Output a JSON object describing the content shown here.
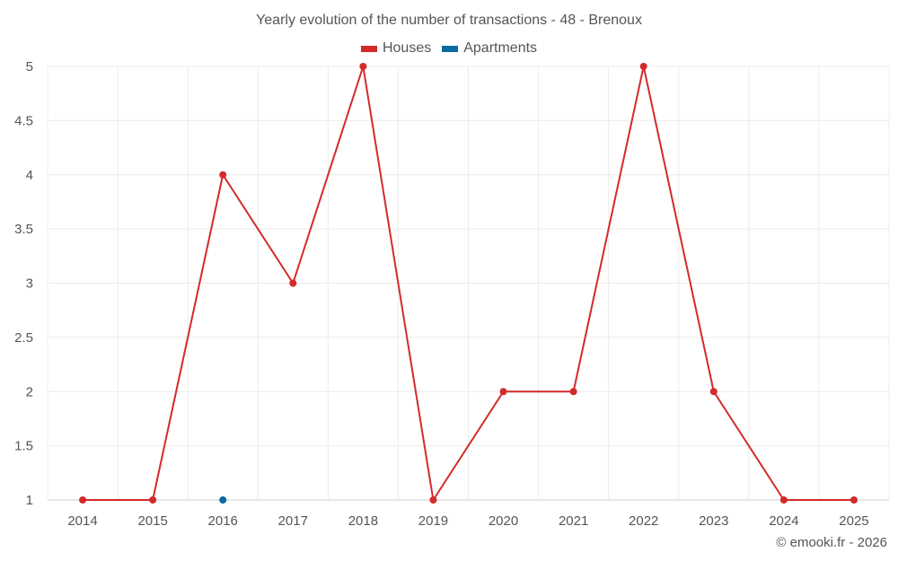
{
  "chart_data": {
    "type": "line",
    "title": "Yearly evolution of the number of transactions - 48 - Brenoux",
    "categories": [
      "2014",
      "2015",
      "2016",
      "2017",
      "2018",
      "2019",
      "2020",
      "2021",
      "2022",
      "2023",
      "2024",
      "2025"
    ],
    "y_ticks": [
      "1",
      "1.5",
      "2",
      "2.5",
      "3",
      "3.5",
      "4",
      "4.5",
      "5"
    ],
    "ylim": [
      1,
      5
    ],
    "grid": true,
    "legend_position": "top-center",
    "series": [
      {
        "name": "Houses",
        "color": "#d42a2a",
        "values": [
          1,
          1,
          4,
          3,
          5,
          1,
          2,
          2,
          5,
          2,
          1,
          1
        ]
      },
      {
        "name": "Apartments",
        "color": "#0b6aa2",
        "values": [
          null,
          null,
          1,
          null,
          null,
          null,
          null,
          null,
          null,
          null,
          null,
          null
        ]
      }
    ]
  },
  "credit": "© emooki.fr - 2026"
}
